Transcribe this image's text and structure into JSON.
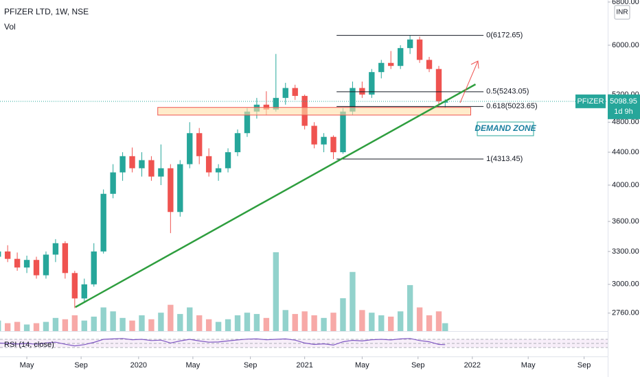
{
  "chart_data": {
    "type": "candlestick",
    "title": "PFIZER LTD, 1W, NSE",
    "volume_label": "Vol",
    "currency": "INR",
    "log_scale": true,
    "up_color": "#26a69a",
    "down_color": "#ef5350",
    "xlim": [
      -43.4,
      146.9
    ],
    "xticks": [
      {
        "value": -35,
        "label": "May"
      },
      {
        "value": -18,
        "label": "Sep"
      },
      {
        "value": 0,
        "label": "2020"
      },
      {
        "value": 17,
        "label": "May"
      },
      {
        "value": 35,
        "label": "Sep"
      },
      {
        "value": 52,
        "label": "2021"
      },
      {
        "value": 70,
        "label": "May"
      },
      {
        "value": 87.5,
        "label": "Sep"
      },
      {
        "value": 104.5,
        "label": "2022"
      },
      {
        "value": 122,
        "label": "May"
      },
      {
        "value": 139.5,
        "label": "Sep"
      }
    ],
    "ylim": [
      2620,
      6840
    ],
    "yticks": [
      {
        "value": 2760,
        "label": "2760.00"
      },
      {
        "value": 3000,
        "label": "3000.00"
      },
      {
        "value": 3300,
        "label": "3300.00"
      },
      {
        "value": 3600,
        "label": "3600.00"
      },
      {
        "value": 4000,
        "label": "4000.00"
      },
      {
        "value": 4400,
        "label": "4400.00"
      },
      {
        "value": 4800,
        "label": "4800.00"
      },
      {
        "value": 5200,
        "label": "5200.00"
      },
      {
        "value": 6000,
        "label": "6000.00"
      },
      {
        "value": 6800,
        "label": "6800.00"
      }
    ],
    "x": [
      -44,
      -41,
      -38,
      -35,
      -32,
      -29,
      -26,
      -23,
      -20,
      -17,
      -14,
      -11,
      -8,
      -5,
      -2,
      1,
      4,
      7,
      10,
      13,
      16,
      19,
      22,
      25,
      28,
      31,
      34,
      37,
      40,
      43,
      46,
      49,
      52,
      55,
      58,
      61,
      64,
      67,
      70,
      73,
      76,
      79,
      82,
      85,
      88,
      91,
      94,
      96
    ],
    "open": [
      3250,
      3300,
      3230,
      3150,
      3220,
      3080,
      3270,
      3380,
      3100,
      2880,
      3000,
      3300,
      3900,
      4150,
      4350,
      4200,
      4300,
      4100,
      4200,
      3700,
      4250,
      4650,
      4350,
      4150,
      4200,
      4400,
      4650,
      4950,
      5050,
      4980,
      5150,
      5300,
      5180,
      4750,
      4500,
      4600,
      4400,
      4950,
      5300,
      5200,
      5550,
      5700,
      5650,
      5950,
      6100,
      5750,
      5600,
      5080
    ],
    "high": [
      3340,
      3360,
      3290,
      3260,
      3250,
      3300,
      3420,
      3400,
      3120,
      3050,
      3380,
      3950,
      4250,
      4400,
      4460,
      4400,
      4350,
      4500,
      4250,
      4300,
      4800,
      4720,
      4450,
      4250,
      4450,
      4700,
      5000,
      5150,
      5250,
      5850,
      5380,
      5350,
      5200,
      4800,
      4650,
      4620,
      5000,
      5400,
      5400,
      5600,
      5750,
      5900,
      6000,
      6172.65,
      6150,
      5800,
      5650,
      5130
    ],
    "low": [
      3180,
      3200,
      3120,
      3100,
      3050,
      3050,
      3200,
      3050,
      2800,
      2850,
      2980,
      3280,
      3850,
      4050,
      4150,
      4100,
      4050,
      4000,
      3480,
      3650,
      4200,
      4250,
      4100,
      4050,
      4150,
      4350,
      4600,
      4850,
      4900,
      4950,
      5050,
      5120,
      4700,
      4450,
      4400,
      4313.45,
      4380,
      4900,
      5150,
      5150,
      5450,
      5600,
      5600,
      5850,
      5700,
      5550,
      5050,
      5000
    ],
    "close": [
      3300,
      3230,
      3150,
      3220,
      3080,
      3270,
      3380,
      3100,
      2880,
      3000,
      3300,
      3900,
      4150,
      4350,
      4200,
      4300,
      4100,
      4200,
      3700,
      4250,
      4650,
      4350,
      4150,
      4200,
      4400,
      4650,
      4950,
      5050,
      4980,
      5150,
      5300,
      5180,
      4750,
      4500,
      4600,
      4400,
      4950,
      5300,
      5200,
      5550,
      5700,
      5650,
      5950,
      6100,
      5750,
      5600,
      5100,
      5098.95
    ],
    "volume": [
      8,
      6,
      7,
      5,
      6,
      7,
      10,
      9,
      12,
      8,
      11,
      18,
      15,
      10,
      8,
      12,
      9,
      14,
      20,
      13,
      18,
      12,
      9,
      7,
      9,
      12,
      14,
      13,
      10,
      60,
      16,
      13,
      15,
      12,
      10,
      14,
      25,
      45,
      16,
      14,
      12,
      11,
      15,
      35,
      18,
      12,
      15,
      6
    ],
    "rsi_label": "RSI (14, close)",
    "rsi": [
      52,
      50,
      47,
      50,
      46,
      52,
      56,
      46,
      38,
      44,
      55,
      70,
      72,
      74,
      68,
      70,
      64,
      66,
      52,
      62,
      70,
      62,
      56,
      57,
      62,
      67,
      71,
      72,
      68,
      70,
      72,
      66,
      52,
      45,
      48,
      42,
      58,
      65,
      62,
      68,
      70,
      67,
      72,
      74,
      64,
      58,
      45,
      44
    ],
    "fib": {
      "x": [
        62,
        108
      ],
      "levels": [
        {
          "label": "0(6172.65)",
          "value": 6172.65
        },
        {
          "label": "0.5(5243.05)",
          "value": 5243.05
        },
        {
          "label": "0.618(5023.65)",
          "value": 5023.65
        },
        {
          "label": "1(4313.45)",
          "value": 4313.45
        }
      ]
    },
    "zone": {
      "label": "DEMAND ZONE",
      "x": [
        6,
        104
      ],
      "top": 5010,
      "bottom": 4900
    },
    "trendline": {
      "x": [
        -19.8,
        105.5
      ],
      "y": [
        2808,
        5357
      ],
      "color": "#2e9e3e"
    },
    "last": {
      "name": "PFIZER",
      "value": 5098.95,
      "countdown": "1d 9h"
    }
  }
}
